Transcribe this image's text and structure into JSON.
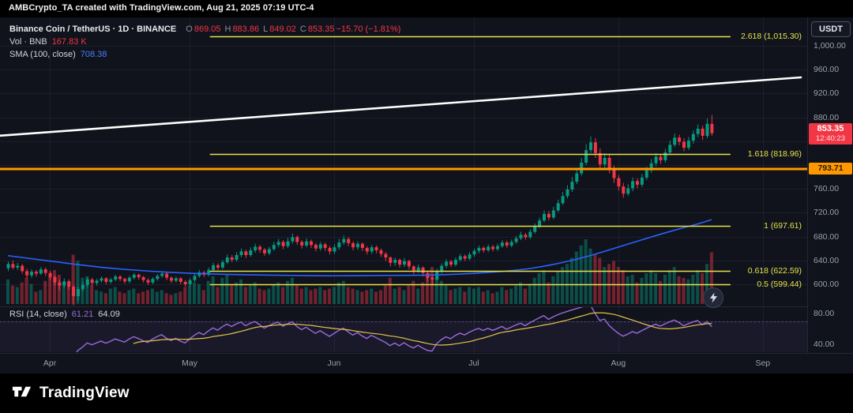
{
  "topbar": {
    "attribution": "AMBCrypto_TA created with TradingView.com, Aug 21, 2025 07:19 UTC-4"
  },
  "legend": {
    "symbol": "Binance Coin / TetherUS · 1D · BINANCE",
    "ohlc": {
      "o_label": "O",
      "o": "869.05",
      "h_label": "H",
      "h": "883.86",
      "l_label": "L",
      "l": "849.02",
      "c_label": "C",
      "c": "853.35",
      "change": "−15.70 (−1.81%)"
    },
    "volume": {
      "label": "Vol · BNB",
      "value": "167.83 K"
    },
    "sma": {
      "label": "SMA (100, close)",
      "value": "708.38"
    }
  },
  "rsi_pane": {
    "label": "RSI (14, close)",
    "value": "61.21",
    "ma_value": "64.09"
  },
  "axis": {
    "currency_button": "USDT",
    "price_ticks": [
      {
        "label": "1,000.00",
        "value": 1000
      },
      {
        "label": "960.00",
        "value": 960
      },
      {
        "label": "920.00",
        "value": 920
      },
      {
        "label": "880.00",
        "value": 880
      },
      {
        "label": "760.00",
        "value": 760
      },
      {
        "label": "720.00",
        "value": 720
      },
      {
        "label": "680.00",
        "value": 680
      },
      {
        "label": "640.00",
        "value": 640
      },
      {
        "label": "600.00",
        "value": 600
      }
    ],
    "rsi_ticks": [
      {
        "label": "80.00",
        "value": 80
      },
      {
        "label": "40.00",
        "value": 40
      }
    ],
    "price_badge": {
      "price": "853.35",
      "countdown": "12:40:23",
      "value": 853.35,
      "color": "#f23645"
    },
    "level_badge": {
      "label": "793.71",
      "value": 793.71,
      "color": "#ff9800"
    }
  },
  "time_axis": {
    "months": [
      "Apr",
      "May",
      "Jun",
      "Jul",
      "Aug",
      "Sep"
    ]
  },
  "footer": {
    "brand": "TradingView"
  },
  "chart_data": {
    "type": "candlestick",
    "symbol": "Binance Coin / TetherUS",
    "exchange": "BINANCE",
    "timeframe": "1D",
    "start_date": "2025-03-23",
    "last_close": 853.35,
    "last_change": -15.7,
    "last_change_pct": -1.81,
    "volume_unit": "K",
    "colors": {
      "up": "#089981",
      "down": "#f23645",
      "sma": "#2962ff",
      "trendline": "#ffffff",
      "fib": "#e5e34b",
      "hline": "#ff9800",
      "rsi": "#9c6ade",
      "rsi_ma": "#e3c14c"
    },
    "candles": [
      [
        627,
        638,
        622,
        634,
        80
      ],
      [
        634,
        640,
        625,
        628,
        60
      ],
      [
        628,
        636,
        624,
        631,
        55
      ],
      [
        631,
        634,
        618,
        622,
        70
      ],
      [
        622,
        626,
        610,
        615,
        85
      ],
      [
        615,
        625,
        611,
        621,
        65
      ],
      [
        621,
        624,
        613,
        618,
        40
      ],
      [
        618,
        629,
        616,
        625,
        45
      ],
      [
        625,
        628,
        614,
        619,
        75
      ],
      [
        619,
        623,
        607,
        612,
        90
      ],
      [
        612,
        615,
        598,
        603,
        110
      ],
      [
        603,
        608,
        590,
        598,
        95
      ],
      [
        598,
        610,
        594,
        605,
        70
      ],
      [
        605,
        608,
        591,
        596,
        60
      ],
      [
        596,
        598,
        565,
        580,
        160
      ],
      [
        580,
        596,
        572,
        592,
        140
      ],
      [
        592,
        604,
        588,
        599,
        85
      ],
      [
        599,
        612,
        595,
        608,
        90
      ],
      [
        608,
        611,
        597,
        602,
        60
      ],
      [
        602,
        609,
        598,
        606,
        45
      ],
      [
        606,
        613,
        603,
        610,
        40
      ],
      [
        610,
        612,
        600,
        604,
        35
      ],
      [
        604,
        611,
        601,
        608,
        50
      ],
      [
        608,
        616,
        605,
        613,
        55
      ],
      [
        613,
        615,
        605,
        609,
        40
      ],
      [
        609,
        611,
        601,
        605,
        35
      ],
      [
        605,
        614,
        602,
        611,
        45
      ],
      [
        611,
        619,
        608,
        616,
        50
      ],
      [
        616,
        618,
        608,
        612,
        35
      ],
      [
        612,
        614,
        603,
        607,
        40
      ],
      [
        607,
        610,
        599,
        603,
        45
      ],
      [
        603,
        612,
        600,
        609,
        50
      ],
      [
        609,
        617,
        606,
        614,
        40
      ],
      [
        614,
        621,
        611,
        618,
        45
      ],
      [
        618,
        620,
        607,
        611,
        35
      ],
      [
        611,
        613,
        602,
        606,
        30
      ],
      [
        606,
        613,
        603,
        610,
        35
      ],
      [
        610,
        612,
        600,
        604,
        40
      ],
      [
        604,
        607,
        596,
        600,
        55
      ],
      [
        600,
        610,
        596,
        607,
        60
      ],
      [
        607,
        618,
        604,
        614,
        70
      ],
      [
        614,
        624,
        611,
        620,
        65
      ],
      [
        620,
        623,
        612,
        616,
        45
      ],
      [
        616,
        628,
        613,
        624,
        75
      ],
      [
        624,
        636,
        621,
        632,
        90
      ],
      [
        632,
        635,
        624,
        628,
        55
      ],
      [
        628,
        641,
        625,
        637,
        85
      ],
      [
        637,
        650,
        634,
        645,
        95
      ],
      [
        645,
        649,
        637,
        641,
        60
      ],
      [
        641,
        654,
        638,
        649,
        70
      ],
      [
        649,
        660,
        645,
        655,
        80
      ],
      [
        655,
        658,
        644,
        649,
        55
      ],
      [
        649,
        662,
        646,
        657,
        60
      ],
      [
        657,
        668,
        653,
        663,
        70
      ],
      [
        663,
        666,
        653,
        658,
        50
      ],
      [
        658,
        661,
        648,
        652,
        45
      ],
      [
        652,
        663,
        649,
        659,
        50
      ],
      [
        659,
        671,
        656,
        666,
        65
      ],
      [
        666,
        676,
        662,
        671,
        70
      ],
      [
        671,
        674,
        659,
        664,
        55
      ],
      [
        664,
        678,
        661,
        672,
        75
      ],
      [
        672,
        685,
        668,
        679,
        85
      ],
      [
        679,
        682,
        666,
        671,
        60
      ],
      [
        671,
        674,
        660,
        665,
        50
      ],
      [
        665,
        677,
        662,
        672,
        55
      ],
      [
        672,
        675,
        661,
        666,
        45
      ],
      [
        666,
        669,
        655,
        660,
        50
      ],
      [
        660,
        671,
        656,
        667,
        55
      ],
      [
        667,
        670,
        656,
        661,
        45
      ],
      [
        661,
        664,
        650,
        655,
        50
      ],
      [
        655,
        667,
        651,
        662,
        55
      ],
      [
        662,
        676,
        658,
        670,
        70
      ],
      [
        670,
        682,
        666,
        676,
        75
      ],
      [
        676,
        679,
        664,
        669,
        55
      ],
      [
        669,
        672,
        657,
        662,
        50
      ],
      [
        662,
        672,
        658,
        668,
        45
      ],
      [
        668,
        670,
        656,
        661,
        40
      ],
      [
        661,
        664,
        650,
        655,
        45
      ],
      [
        655,
        666,
        651,
        662,
        50
      ],
      [
        662,
        665,
        652,
        657,
        40
      ],
      [
        657,
        660,
        646,
        651,
        45
      ],
      [
        651,
        654,
        639,
        645,
        60
      ],
      [
        645,
        647,
        630,
        636,
        85
      ],
      [
        636,
        645,
        631,
        641,
        50
      ],
      [
        641,
        643,
        628,
        633,
        55
      ],
      [
        633,
        644,
        629,
        639,
        45
      ],
      [
        639,
        641,
        625,
        630,
        60
      ],
      [
        630,
        632,
        617,
        623,
        75
      ],
      [
        623,
        633,
        619,
        628,
        50
      ],
      [
        628,
        630,
        613,
        619,
        70
      ],
      [
        619,
        621,
        604,
        611,
        90
      ],
      [
        611,
        615,
        598,
        608,
        120
      ],
      [
        608,
        626,
        606,
        622,
        100
      ],
      [
        622,
        635,
        618,
        631,
        75
      ],
      [
        631,
        642,
        627,
        638,
        60
      ],
      [
        638,
        641,
        629,
        633,
        45
      ],
      [
        633,
        645,
        630,
        641,
        50
      ],
      [
        641,
        651,
        638,
        647,
        55
      ],
      [
        647,
        650,
        639,
        643,
        40
      ],
      [
        643,
        654,
        640,
        650,
        55
      ],
      [
        650,
        660,
        646,
        656,
        50
      ],
      [
        656,
        665,
        652,
        661,
        55
      ],
      [
        661,
        664,
        653,
        657,
        40
      ],
      [
        657,
        667,
        654,
        663,
        45
      ],
      [
        663,
        666,
        655,
        659,
        35
      ],
      [
        659,
        668,
        656,
        664,
        40
      ],
      [
        664,
        674,
        661,
        670,
        55
      ],
      [
        670,
        673,
        661,
        665,
        45
      ],
      [
        665,
        675,
        662,
        671,
        50
      ],
      [
        671,
        681,
        668,
        677,
        60
      ],
      [
        677,
        688,
        674,
        683,
        70
      ],
      [
        683,
        686,
        675,
        679,
        50
      ],
      [
        679,
        692,
        676,
        688,
        65
      ],
      [
        688,
        702,
        685,
        697,
        85
      ],
      [
        697,
        712,
        694,
        707,
        100
      ],
      [
        707,
        724,
        704,
        718,
        110
      ],
      [
        718,
        723,
        707,
        712,
        70
      ],
      [
        712,
        730,
        709,
        724,
        90
      ],
      [
        724,
        742,
        721,
        736,
        105
      ],
      [
        736,
        755,
        733,
        748,
        120
      ],
      [
        748,
        766,
        744,
        759,
        130
      ],
      [
        759,
        780,
        755,
        772,
        150
      ],
      [
        772,
        794,
        768,
        786,
        170
      ],
      [
        786,
        812,
        782,
        804,
        190
      ],
      [
        804,
        835,
        800,
        825,
        210
      ],
      [
        825,
        848,
        820,
        838,
        180
      ],
      [
        838,
        845,
        812,
        820,
        160
      ],
      [
        820,
        828,
        794,
        801,
        150
      ],
      [
        801,
        820,
        795,
        812,
        120
      ],
      [
        812,
        818,
        786,
        793,
        130
      ],
      [
        793,
        799,
        770,
        778,
        140
      ],
      [
        778,
        783,
        757,
        764,
        120
      ],
      [
        764,
        770,
        745,
        752,
        110
      ],
      [
        752,
        768,
        748,
        761,
        90
      ],
      [
        761,
        779,
        756,
        773,
        95
      ],
      [
        773,
        778,
        761,
        767,
        70
      ],
      [
        767,
        785,
        763,
        779,
        85
      ],
      [
        779,
        797,
        775,
        791,
        100
      ],
      [
        791,
        810,
        787,
        803,
        110
      ],
      [
        803,
        820,
        798,
        814,
        100
      ],
      [
        814,
        818,
        802,
        808,
        75
      ],
      [
        808,
        827,
        804,
        821,
        95
      ],
      [
        821,
        841,
        817,
        834,
        110
      ],
      [
        834,
        853,
        830,
        846,
        120
      ],
      [
        846,
        851,
        833,
        839,
        90
      ],
      [
        839,
        845,
        823,
        829,
        85
      ],
      [
        829,
        847,
        825,
        841,
        80
      ],
      [
        841,
        858,
        836,
        852,
        95
      ],
      [
        852,
        868,
        847,
        861,
        110
      ],
      [
        861,
        866,
        842,
        849,
        100
      ],
      [
        849,
        878,
        845,
        869,
        130
      ],
      [
        869.05,
        883.86,
        849.02,
        853.35,
        167.83
      ]
    ],
    "sma_100": {
      "name": "SMA 100",
      "current": 708.38,
      "points": [
        [
          0,
          648
        ],
        [
          10,
          638
        ],
        [
          20,
          628
        ],
        [
          30,
          622
        ],
        [
          40,
          618
        ],
        [
          50,
          616
        ],
        [
          60,
          615
        ],
        [
          70,
          614
        ],
        [
          80,
          615
        ],
        [
          90,
          615
        ],
        [
          100,
          618
        ],
        [
          110,
          624
        ],
        [
          115,
          630
        ],
        [
          120,
          638
        ],
        [
          125,
          648
        ],
        [
          130,
          660
        ],
        [
          135,
          672
        ],
        [
          140,
          684
        ],
        [
          145,
          695
        ],
        [
          148,
          701
        ],
        [
          151,
          708.38
        ]
      ]
    },
    "trendline": {
      "p_start": 849,
      "p_end": 947
    },
    "horizontal_line": {
      "price": 793.71
    },
    "fib_levels": [
      {
        "label": "2.618 (1,015.30)",
        "price": 1015.3
      },
      {
        "label": "1.618 (818.96)",
        "price": 818.96
      },
      {
        "label": "1 (697.61)",
        "price": 697.61
      },
      {
        "label": "0.618 (622.59)",
        "price": 622.59
      },
      {
        "label": "0.5 (599.44)",
        "price": 599.44
      }
    ],
    "rsi": {
      "period": 14,
      "ma_period": 14,
      "current": 61.21,
      "ma_current": 64.09,
      "bands": [
        70,
        30
      ]
    }
  }
}
